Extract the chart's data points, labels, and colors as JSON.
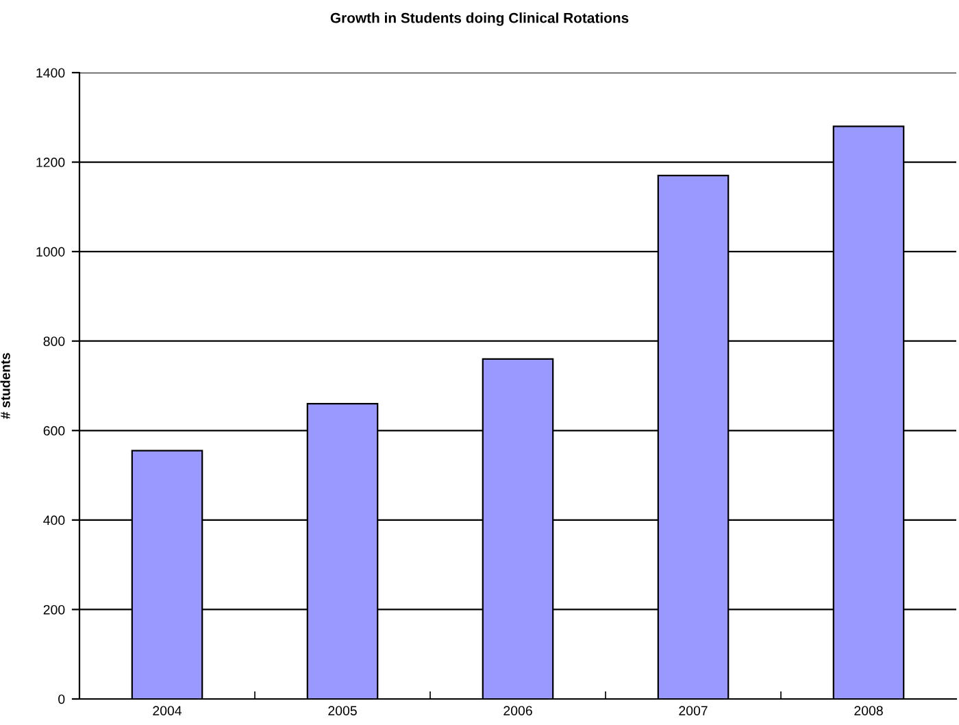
{
  "chart_data": {
    "type": "bar",
    "title": "Growth in Students doing Clinical Rotations",
    "ylabel": "# students",
    "categories": [
      "2004",
      "2005",
      "2006",
      "2007",
      "2008"
    ],
    "values": [
      555,
      660,
      760,
      1170,
      1280
    ],
    "color": "#9999ff",
    "ylim": [
      0,
      1400
    ],
    "yticks": [
      0,
      200,
      400,
      600,
      800,
      1000,
      1200,
      1400
    ],
    "grid": "y",
    "legend": false
  }
}
